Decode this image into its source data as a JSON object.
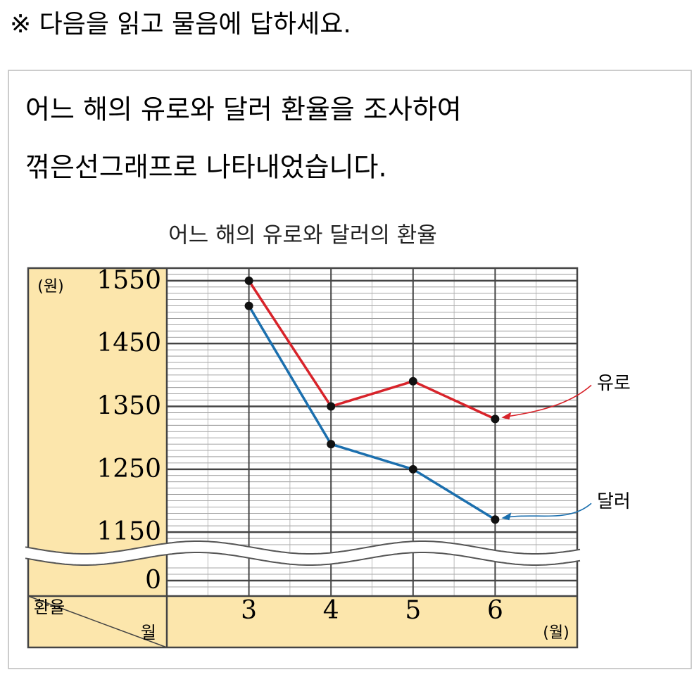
{
  "heading": "※ 다음을 읽고 물음에 답하세요.",
  "passage": [
    "어느 해의 유로와 달러 환율을 조사하여",
    "꺾은선그래프로 나타내었습니다."
  ],
  "chart_data": {
    "type": "line",
    "title": "어느 해의 유로와 달러의 환율",
    "y_unit": "(원)",
    "x_unit": "(월)",
    "corner_labels": [
      "환율",
      "월"
    ],
    "categories": [
      "3",
      "4",
      "5",
      "6"
    ],
    "series": [
      {
        "name": "유로",
        "color": "#d8232a",
        "values": [
          1550,
          1350,
          1390,
          1330
        ]
      },
      {
        "name": "달러",
        "color": "#1b6fae",
        "values": [
          1510,
          1290,
          1250,
          1170
        ]
      }
    ],
    "ylim": [
      1130,
      1570
    ],
    "yticks": [
      0,
      1150,
      1250,
      1350,
      1450,
      1550
    ],
    "axis_break": true,
    "grid": true,
    "panel_color": "#fce6ac"
  }
}
